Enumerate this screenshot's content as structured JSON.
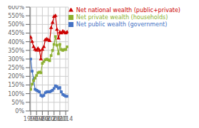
{
  "chart_data": {
    "type": "line",
    "x": [
      1990,
      1991,
      1992,
      1993,
      1994,
      1995,
      1996,
      1997,
      1998,
      1999,
      2000,
      2001,
      2002,
      2003,
      2004,
      2005,
      2006,
      2007,
      2008,
      2009,
      2010,
      2011,
      2012,
      2013,
      2014,
      2015
    ],
    "series": [
      {
        "name": "Net national wealth (public+private)",
        "color": "#cc0000",
        "marker": "triangle",
        "values": [
          4.25,
          4.0,
          3.7,
          3.55,
          3.5,
          3.6,
          3.5,
          3.0,
          3.55,
          3.7,
          4.1,
          4.15,
          4.1,
          4.05,
          4.8,
          5.1,
          5.45,
          5.5,
          4.7,
          4.2,
          4.55,
          4.5,
          4.6,
          4.55,
          4.5,
          4.55
        ]
      },
      {
        "name": "Net public wealth (government)",
        "color": "#4472c4",
        "marker": "square",
        "values": [
          3.0,
          2.3,
          1.8,
          1.25,
          1.2,
          1.15,
          1.1,
          0.9,
          0.85,
          0.9,
          1.05,
          1.1,
          1.1,
          1.1,
          1.15,
          1.2,
          1.3,
          1.45,
          1.4,
          1.3,
          1.35,
          1.1,
          0.95,
          0.9,
          0.85,
          0.85
        ]
      },
      {
        "name": "Net private wealth (households)",
        "color": "#8db030",
        "marker": "square",
        "values": [
          1.25,
          1.55,
          1.75,
          1.9,
          2.05,
          2.2,
          2.25,
          2.2,
          2.75,
          2.85,
          2.95,
          3.0,
          2.95,
          2.9,
          3.2,
          3.5,
          3.85,
          4.3,
          3.8,
          3.3,
          3.85,
          3.55,
          3.5,
          3.55,
          3.55,
          3.7
        ]
      }
    ],
    "xlim": [
      1989.5,
      2015.8
    ],
    "xticks": [
      1990,
      1994,
      1998,
      2002,
      2006,
      2010,
      2014
    ],
    "ylim": [
      0,
      6.0
    ],
    "yticks": [
      {
        "value": 0,
        "label": "0%"
      },
      {
        "value": 0.5,
        "label": "50%"
      },
      {
        "value": 1.0,
        "label": "100%"
      },
      {
        "value": 1.5,
        "label": "150%"
      },
      {
        "value": 2.0,
        "label": "200%"
      },
      {
        "value": 2.5,
        "label": "250%"
      },
      {
        "value": 3.0,
        "label": "300%"
      },
      {
        "value": 3.5,
        "label": "350%"
      },
      {
        "value": 4.0,
        "label": "400%"
      },
      {
        "value": 4.5,
        "label": "450%"
      },
      {
        "value": 5.0,
        "label": "500%"
      },
      {
        "value": 5.5,
        "label": "550%"
      },
      {
        "value": 6.0,
        "label": "600%"
      }
    ],
    "grid": true,
    "legend": "upper right"
  }
}
